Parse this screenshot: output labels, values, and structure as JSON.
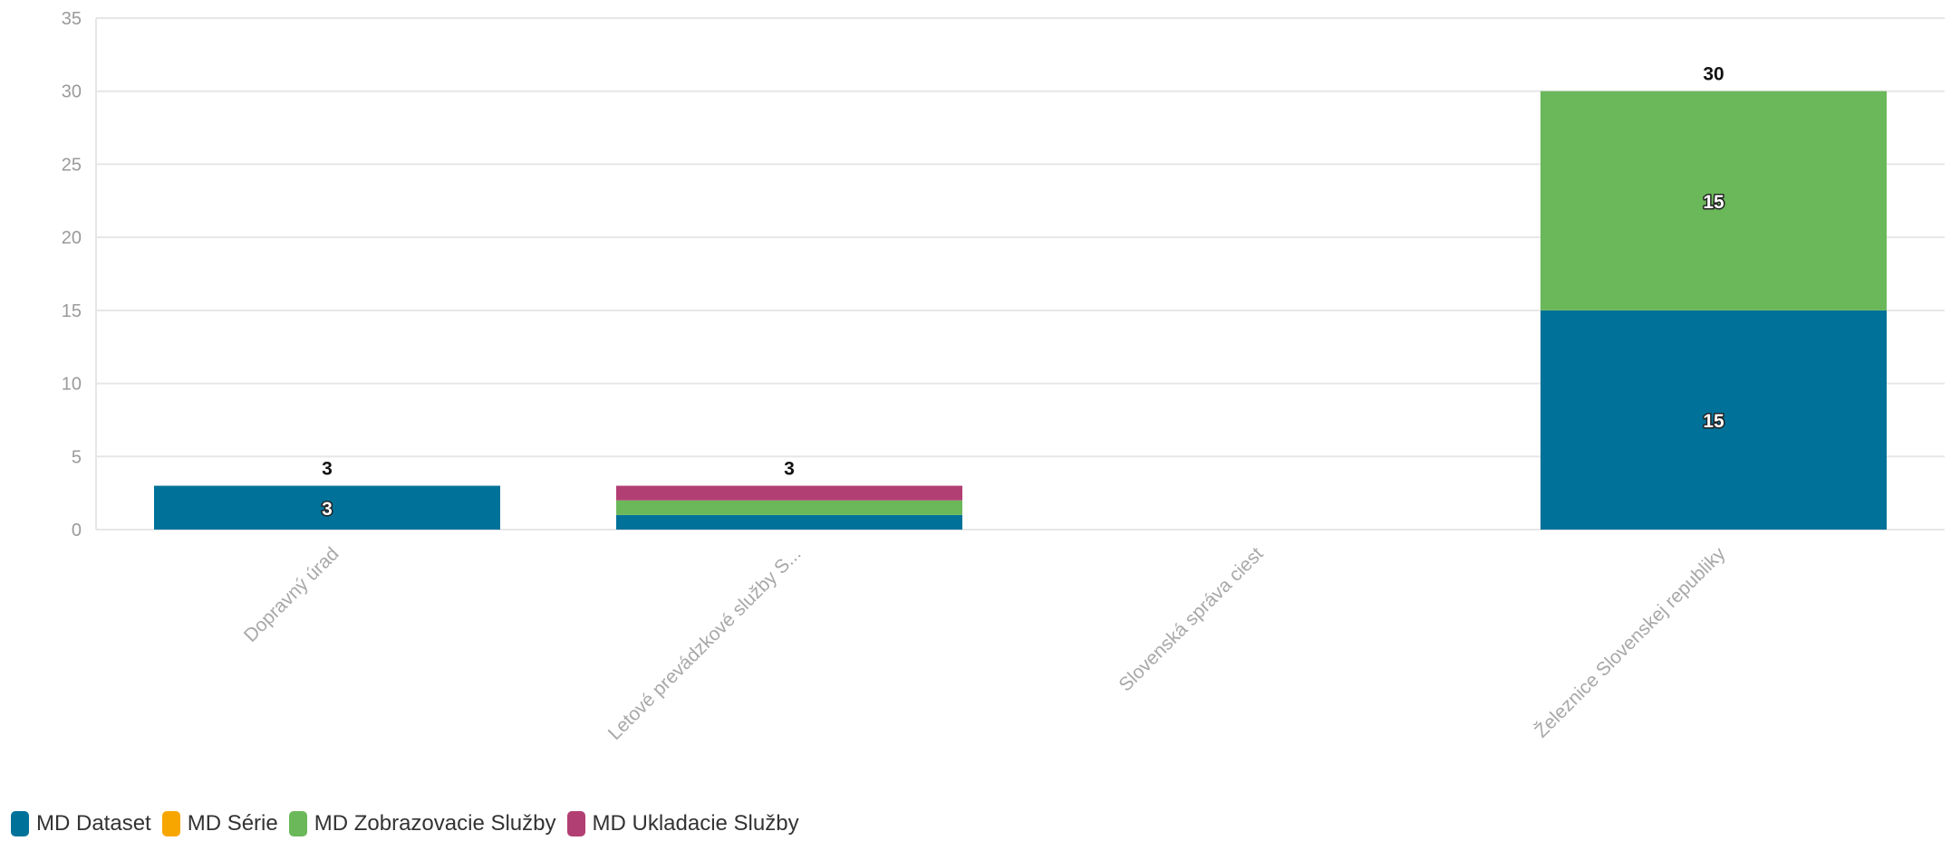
{
  "chart_data": {
    "type": "bar",
    "stacked": true,
    "categories": [
      "Dopravný úrad",
      "Letové prevádzkové služby S...",
      "Slovenská správa ciest",
      "Železnice Slovenskej republiky"
    ],
    "series": [
      {
        "name": "MD Dataset",
        "color": "#00729a",
        "values": [
          3,
          1,
          0,
          15
        ],
        "labels": [
          "3",
          "",
          "",
          "15"
        ]
      },
      {
        "name": "MD Série",
        "color": "#f7a600",
        "values": [
          0,
          0,
          0,
          0
        ],
        "labels": [
          "",
          "",
          "",
          ""
        ]
      },
      {
        "name": "MD Zobrazovacie Služby",
        "color": "#6bb85a",
        "values": [
          0,
          1,
          0,
          15
        ],
        "labels": [
          "",
          "",
          "",
          "15"
        ]
      },
      {
        "name": "MD Ukladacie Služby",
        "color": "#b23f73",
        "values": [
          0,
          1,
          0,
          0
        ],
        "labels": [
          "",
          "",
          "",
          ""
        ]
      }
    ],
    "totals": [
      "3",
      "3",
      "",
      "30"
    ],
    "y_ticks": [
      "0",
      "5",
      "10",
      "15",
      "20",
      "25",
      "30",
      "35"
    ],
    "ylim": [
      0,
      35
    ],
    "grid": true,
    "legend_position": "bottom-left"
  }
}
